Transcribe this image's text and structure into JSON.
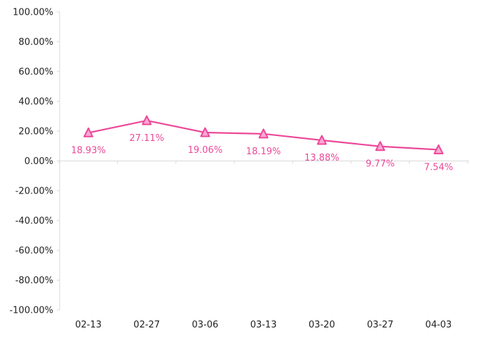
{
  "chart_data": {
    "type": "line",
    "title": "",
    "xlabel": "",
    "ylabel": "",
    "categories": [
      "02-13",
      "02-27",
      "03-06",
      "03-13",
      "03-20",
      "03-27",
      "04-03"
    ],
    "ylim": [
      -100,
      100
    ],
    "yticks": [
      100,
      80,
      60,
      40,
      20,
      0,
      -20,
      -40,
      -60,
      -80,
      -100
    ],
    "ytick_labels": [
      "100.00%",
      "80.00%",
      "60.00%",
      "40.00%",
      "20.00%",
      "0.00%",
      "-20.00%",
      "-40.00%",
      "-60.00%",
      "-80.00%",
      "-100.00%"
    ],
    "grid": false,
    "marker": "triangle",
    "series": [
      {
        "values": [
          18.93,
          27.11,
          19.06,
          18.19,
          13.88,
          9.77,
          7.54
        ],
        "labels": [
          "18.93%",
          "27.11%",
          "19.06%",
          "18.19%",
          "13.88%",
          "9.77%",
          "7.54%"
        ],
        "color": "#ec4899"
      }
    ]
  }
}
